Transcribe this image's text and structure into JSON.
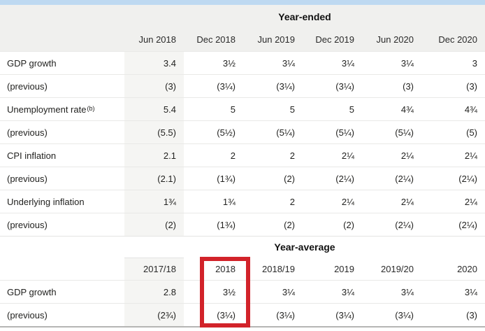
{
  "page": {
    "accent_bar_color": "#bed9f1",
    "band_color": "#f0f0ee",
    "first_column_shade_color": "#f5f5f3",
    "bottom_rule_color": "#b6b6b4"
  },
  "table": {
    "sections": [
      {
        "title": "Year-ended",
        "header_style": "gray",
        "columns": [
          "Jun 2018",
          "Dec 2018",
          "Jun 2019",
          "Dec 2019",
          "Jun 2020",
          "Dec 2020"
        ],
        "rows": [
          {
            "label": "GDP growth",
            "sup": "",
            "values": [
              "3.4",
              "3½",
              "3¼",
              "3¼",
              "3¼",
              "3"
            ]
          },
          {
            "label": "(previous)",
            "sup": "",
            "values": [
              "(3)",
              "(3¼)",
              "(3¼)",
              "(3¼)",
              "(3)",
              "(3)"
            ]
          },
          {
            "label": "Unemployment rate",
            "sup": "(b)",
            "values": [
              "5.4",
              "5",
              "5",
              "5",
              "4¾",
              "4¾"
            ]
          },
          {
            "label": "(previous)",
            "sup": "",
            "values": [
              "(5.5)",
              "(5½)",
              "(5¼)",
              "(5¼)",
              "(5¼)",
              "(5)"
            ]
          },
          {
            "label": "CPI inflation",
            "sup": "",
            "values": [
              "2.1",
              "2",
              "2",
              "2¼",
              "2¼",
              "2¼"
            ]
          },
          {
            "label": "(previous)",
            "sup": "",
            "values": [
              "(2.1)",
              "(1¾)",
              "(2)",
              "(2¼)",
              "(2¼)",
              "(2¼)"
            ]
          },
          {
            "label": "Underlying inflation",
            "sup": "",
            "values": [
              "1¾",
              "1¾",
              "2",
              "2¼",
              "2¼",
              "2¼"
            ]
          },
          {
            "label": "(previous)",
            "sup": "",
            "values": [
              "(2)",
              "(1¾)",
              "(2)",
              "(2)",
              "(2¼)",
              "(2¼)"
            ]
          }
        ]
      },
      {
        "title": "Year-average",
        "header_style": "white",
        "columns": [
          "2017/18",
          "2018",
          "2018/19",
          "2019",
          "2019/20",
          "2020"
        ],
        "rows": [
          {
            "label": "GDP growth",
            "sup": "",
            "values": [
              "2.8",
              "3½",
              "3¼",
              "3¼",
              "3¼",
              "3¼"
            ]
          },
          {
            "label": "(previous)",
            "sup": "",
            "values": [
              "(2¾)",
              "(3¼)",
              "(3¼)",
              "(3¼)",
              "(3¼)",
              "(3)"
            ]
          }
        ]
      }
    ]
  },
  "annotation": {
    "type": "highlight-box",
    "target_column": "2018",
    "color": "#d2232a"
  }
}
